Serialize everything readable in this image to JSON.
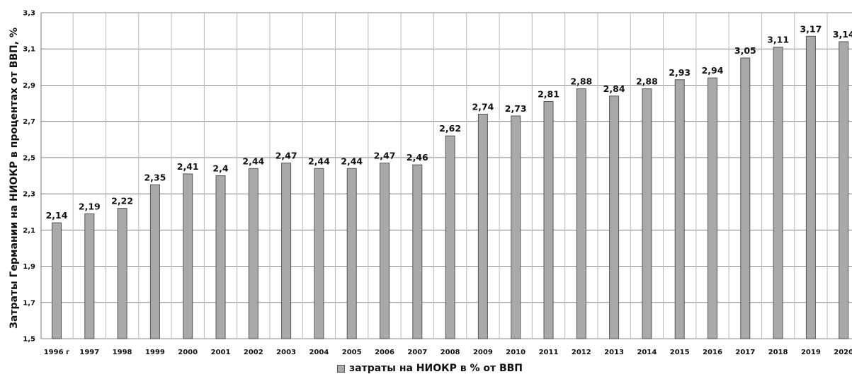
{
  "chart_data": {
    "type": "bar",
    "title": "",
    "xlabel": "",
    "ylabel": "Затраты Германии на НИОКР в процентах от ВВП, %",
    "ylim": [
      1.5,
      3.3
    ],
    "yticks": [
      "1,5",
      "1,7",
      "1,9",
      "2,1",
      "2,3",
      "2,5",
      "2,7",
      "2,9",
      "3,1",
      "3,3"
    ],
    "grid": true,
    "legend_position": "bottom",
    "categories": [
      "1996 г",
      "1997",
      "1998",
      "1999",
      "2000",
      "2001",
      "2002",
      "2003",
      "2004",
      "2005",
      "2006",
      "2007",
      "2008",
      "2009",
      "2010",
      "2011",
      "2012",
      "2013",
      "2014",
      "2015",
      "2016",
      "2017",
      "2018",
      "2019",
      "2020"
    ],
    "series": [
      {
        "name": "затраты на НИОКР в % от ВВП",
        "color": "#a9a9a9",
        "values": [
          2.14,
          2.19,
          2.22,
          2.35,
          2.41,
          2.4,
          2.44,
          2.47,
          2.44,
          2.44,
          2.47,
          2.46,
          2.62,
          2.74,
          2.73,
          2.81,
          2.88,
          2.84,
          2.88,
          2.93,
          2.94,
          3.05,
          3.11,
          3.17,
          3.14
        ],
        "labels": [
          "2,14",
          "2,19",
          "2,22",
          "2,35",
          "2,41",
          "2,4",
          "2,44",
          "2,47",
          "2,44",
          "2,44",
          "2,47",
          "2,46",
          "2,62",
          "2,74",
          "2,73",
          "2,81",
          "2,88",
          "2,84",
          "2,88",
          "2,93",
          "2,94",
          "3,05",
          "3,11",
          "3,17",
          "3,14"
        ]
      }
    ]
  }
}
